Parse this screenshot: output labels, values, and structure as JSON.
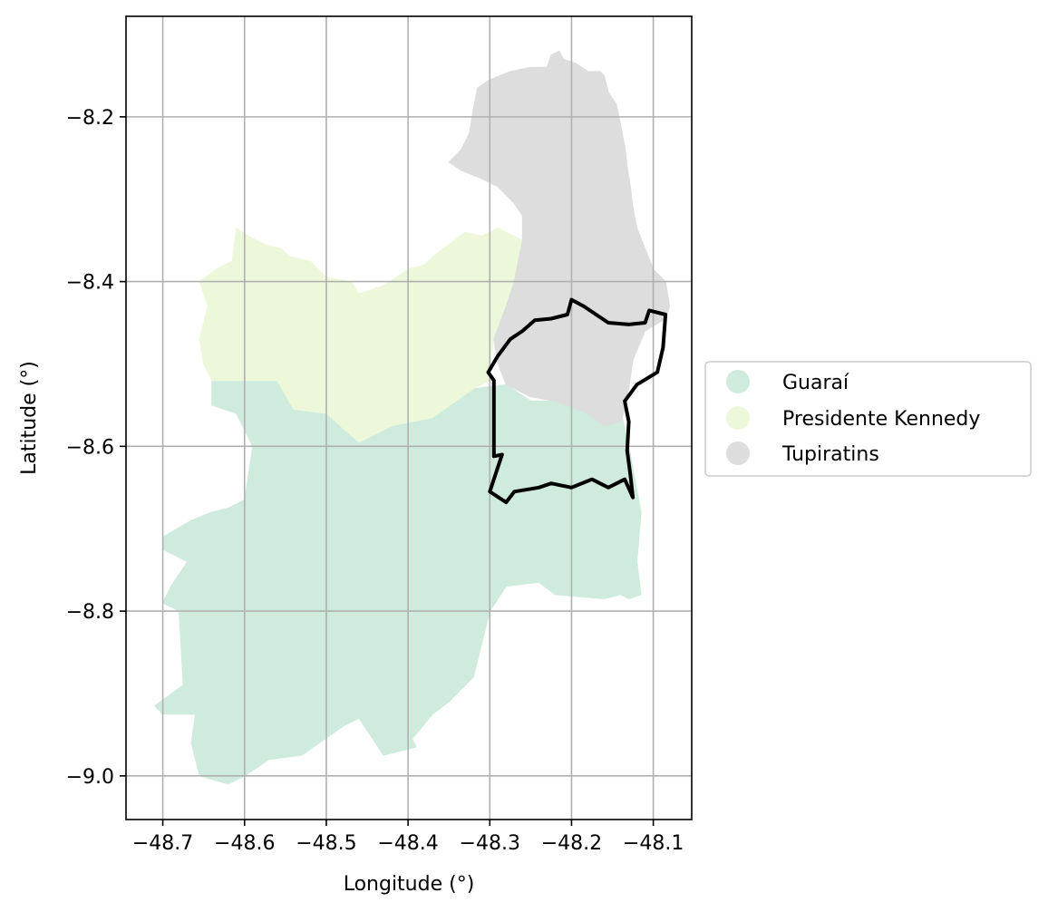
{
  "chart_data": {
    "type": "map",
    "xlabel": "Longitude (°)",
    "ylabel": "Latitude (°)",
    "xlim": [
      -48.745,
      -48.053
    ],
    "ylim": [
      -9.053,
      -8.078
    ],
    "grid": true,
    "legend_position": "right",
    "x_ticks": [
      {
        "value": -48.7,
        "label": "−48.7"
      },
      {
        "value": -48.6,
        "label": "−48.6"
      },
      {
        "value": -48.5,
        "label": "−48.5"
      },
      {
        "value": -48.4,
        "label": "−48.4"
      },
      {
        "value": -48.3,
        "label": "−48.3"
      },
      {
        "value": -48.2,
        "label": "−48.2"
      },
      {
        "value": -48.1,
        "label": "−48.1"
      }
    ],
    "y_ticks": [
      {
        "value": -8.2,
        "label": "−8.2"
      },
      {
        "value": -8.4,
        "label": "−8.4"
      },
      {
        "value": -8.6,
        "label": "−8.6"
      },
      {
        "value": -8.8,
        "label": "−8.8"
      },
      {
        "value": -9.0,
        "label": "−9.0"
      }
    ],
    "regions": [
      {
        "name": "Guaraí",
        "color": "#cfebde",
        "polygon": [
          [
            -48.64,
            -8.52
          ],
          [
            -48.56,
            -8.52
          ],
          [
            -48.54,
            -8.555
          ],
          [
            -48.5,
            -8.56
          ],
          [
            -48.46,
            -8.595
          ],
          [
            -48.42,
            -8.575
          ],
          [
            -48.37,
            -8.565
          ],
          [
            -48.32,
            -8.53
          ],
          [
            -48.28,
            -8.525
          ],
          [
            -48.25,
            -8.545
          ],
          [
            -48.2,
            -8.545
          ],
          [
            -48.17,
            -8.555
          ],
          [
            -48.16,
            -8.57
          ],
          [
            -48.14,
            -8.555
          ],
          [
            -48.13,
            -8.6
          ],
          [
            -48.115,
            -8.68
          ],
          [
            -48.12,
            -8.74
          ],
          [
            -48.115,
            -8.78
          ],
          [
            -48.13,
            -8.785
          ],
          [
            -48.14,
            -8.78
          ],
          [
            -48.16,
            -8.785
          ],
          [
            -48.22,
            -8.78
          ],
          [
            -48.24,
            -8.765
          ],
          [
            -48.28,
            -8.77
          ],
          [
            -48.3,
            -8.8
          ],
          [
            -48.32,
            -8.88
          ],
          [
            -48.35,
            -8.91
          ],
          [
            -48.37,
            -8.925
          ],
          [
            -48.395,
            -8.955
          ],
          [
            -48.39,
            -8.965
          ],
          [
            -48.43,
            -8.975
          ],
          [
            -48.46,
            -8.93
          ],
          [
            -48.48,
            -8.94
          ],
          [
            -48.53,
            -8.975
          ],
          [
            -48.57,
            -8.98
          ],
          [
            -48.6,
            -9.0
          ],
          [
            -48.62,
            -9.01
          ],
          [
            -48.655,
            -9.0
          ],
          [
            -48.665,
            -8.96
          ],
          [
            -48.66,
            -8.925
          ],
          [
            -48.7,
            -8.925
          ],
          [
            -48.71,
            -8.915
          ],
          [
            -48.675,
            -8.89
          ],
          [
            -48.68,
            -8.8
          ],
          [
            -48.7,
            -8.79
          ],
          [
            -48.69,
            -8.77
          ],
          [
            -48.67,
            -8.74
          ],
          [
            -48.7,
            -8.725
          ],
          [
            -48.7,
            -8.71
          ],
          [
            -48.665,
            -8.69
          ],
          [
            -48.64,
            -8.68
          ],
          [
            -48.62,
            -8.675
          ],
          [
            -48.6,
            -8.665
          ],
          [
            -48.59,
            -8.6
          ],
          [
            -48.61,
            -8.56
          ],
          [
            -48.64,
            -8.55
          ],
          [
            -48.64,
            -8.52
          ]
        ]
      },
      {
        "name": "Presidente Kennedy",
        "color": "#edf8db",
        "polygon": [
          [
            -48.61,
            -8.335
          ],
          [
            -48.595,
            -8.345
          ],
          [
            -48.575,
            -8.355
          ],
          [
            -48.555,
            -8.36
          ],
          [
            -48.545,
            -8.37
          ],
          [
            -48.52,
            -8.375
          ],
          [
            -48.5,
            -8.395
          ],
          [
            -48.47,
            -8.4
          ],
          [
            -48.46,
            -8.415
          ],
          [
            -48.43,
            -8.405
          ],
          [
            -48.4,
            -8.385
          ],
          [
            -48.38,
            -8.38
          ],
          [
            -48.37,
            -8.37
          ],
          [
            -48.35,
            -8.355
          ],
          [
            -48.33,
            -8.34
          ],
          [
            -48.31,
            -8.345
          ],
          [
            -48.29,
            -8.335
          ],
          [
            -48.26,
            -8.35
          ],
          [
            -48.265,
            -8.375
          ],
          [
            -48.27,
            -8.4
          ],
          [
            -48.28,
            -8.43
          ],
          [
            -48.295,
            -8.47
          ],
          [
            -48.3,
            -8.5
          ],
          [
            -48.3,
            -8.52
          ],
          [
            -48.32,
            -8.53
          ],
          [
            -48.37,
            -8.565
          ],
          [
            -48.42,
            -8.575
          ],
          [
            -48.46,
            -8.595
          ],
          [
            -48.5,
            -8.56
          ],
          [
            -48.54,
            -8.555
          ],
          [
            -48.56,
            -8.52
          ],
          [
            -48.64,
            -8.52
          ],
          [
            -48.65,
            -8.5
          ],
          [
            -48.655,
            -8.47
          ],
          [
            -48.645,
            -8.43
          ],
          [
            -48.655,
            -8.4
          ],
          [
            -48.635,
            -8.385
          ],
          [
            -48.615,
            -8.375
          ],
          [
            -48.61,
            -8.335
          ]
        ]
      },
      {
        "name": "Tupiratins",
        "color": "#dddddd",
        "polygon": [
          [
            -48.23,
            -8.14
          ],
          [
            -48.225,
            -8.125
          ],
          [
            -48.215,
            -8.12
          ],
          [
            -48.21,
            -8.13
          ],
          [
            -48.195,
            -8.135
          ],
          [
            -48.18,
            -8.145
          ],
          [
            -48.165,
            -8.145
          ],
          [
            -48.16,
            -8.15
          ],
          [
            -48.155,
            -8.17
          ],
          [
            -48.145,
            -8.185
          ],
          [
            -48.14,
            -8.21
          ],
          [
            -48.135,
            -8.235
          ],
          [
            -48.132,
            -8.26
          ],
          [
            -48.128,
            -8.285
          ],
          [
            -48.125,
            -8.31
          ],
          [
            -48.12,
            -8.335
          ],
          [
            -48.11,
            -8.36
          ],
          [
            -48.1,
            -8.385
          ],
          [
            -48.085,
            -8.4
          ],
          [
            -48.08,
            -8.43
          ],
          [
            -48.085,
            -8.445
          ],
          [
            -48.11,
            -8.46
          ],
          [
            -48.125,
            -8.495
          ],
          [
            -48.13,
            -8.53
          ],
          [
            -48.135,
            -8.555
          ],
          [
            -48.14,
            -8.57
          ],
          [
            -48.16,
            -8.575
          ],
          [
            -48.18,
            -8.56
          ],
          [
            -48.22,
            -8.545
          ],
          [
            -48.25,
            -8.54
          ],
          [
            -48.28,
            -8.525
          ],
          [
            -48.29,
            -8.5
          ],
          [
            -48.295,
            -8.47
          ],
          [
            -48.28,
            -8.43
          ],
          [
            -48.27,
            -8.4
          ],
          [
            -48.265,
            -8.375
          ],
          [
            -48.26,
            -8.35
          ],
          [
            -48.26,
            -8.32
          ],
          [
            -48.27,
            -8.305
          ],
          [
            -48.29,
            -8.285
          ],
          [
            -48.31,
            -8.275
          ],
          [
            -48.335,
            -8.265
          ],
          [
            -48.35,
            -8.255
          ],
          [
            -48.335,
            -8.24
          ],
          [
            -48.325,
            -8.22
          ],
          [
            -48.32,
            -8.19
          ],
          [
            -48.315,
            -8.165
          ],
          [
            -48.3,
            -8.155
          ],
          [
            -48.275,
            -8.145
          ],
          [
            -48.25,
            -8.14
          ],
          [
            -48.23,
            -8.14
          ]
        ]
      }
    ],
    "highlight_boundary": [
      [
        -48.29,
        -8.49
      ],
      [
        -48.275,
        -8.47
      ],
      [
        -48.26,
        -8.46
      ],
      [
        -48.245,
        -8.447
      ],
      [
        -48.225,
        -8.445
      ],
      [
        -48.205,
        -8.44
      ],
      [
        -48.2,
        -8.422
      ],
      [
        -48.185,
        -8.43
      ],
      [
        -48.17,
        -8.44
      ],
      [
        -48.155,
        -8.45
      ],
      [
        -48.13,
        -8.452
      ],
      [
        -48.11,
        -8.45
      ],
      [
        -48.105,
        -8.435
      ],
      [
        -48.085,
        -8.44
      ],
      [
        -48.088,
        -8.48
      ],
      [
        -48.095,
        -8.51
      ],
      [
        -48.12,
        -8.525
      ],
      [
        -48.135,
        -8.545
      ],
      [
        -48.13,
        -8.57
      ],
      [
        -48.132,
        -8.605
      ],
      [
        -48.128,
        -8.635
      ],
      [
        -48.125,
        -8.662
      ],
      [
        -48.135,
        -8.64
      ],
      [
        -48.155,
        -8.65
      ],
      [
        -48.175,
        -8.64
      ],
      [
        -48.2,
        -8.65
      ],
      [
        -48.225,
        -8.645
      ],
      [
        -48.24,
        -8.65
      ],
      [
        -48.27,
        -8.655
      ],
      [
        -48.28,
        -8.668
      ],
      [
        -48.3,
        -8.655
      ],
      [
        -48.285,
        -8.61
      ],
      [
        -48.295,
        -8.612
      ],
      [
        -48.295,
        -8.52
      ],
      [
        -48.302,
        -8.51
      ],
      [
        -48.29,
        -8.49
      ]
    ],
    "legend": [
      {
        "label": "Guaraí",
        "color": "#cfebde"
      },
      {
        "label": "Presidente Kennedy",
        "color": "#edf8db"
      },
      {
        "label": "Tupiratins",
        "color": "#dddddd"
      }
    ]
  }
}
